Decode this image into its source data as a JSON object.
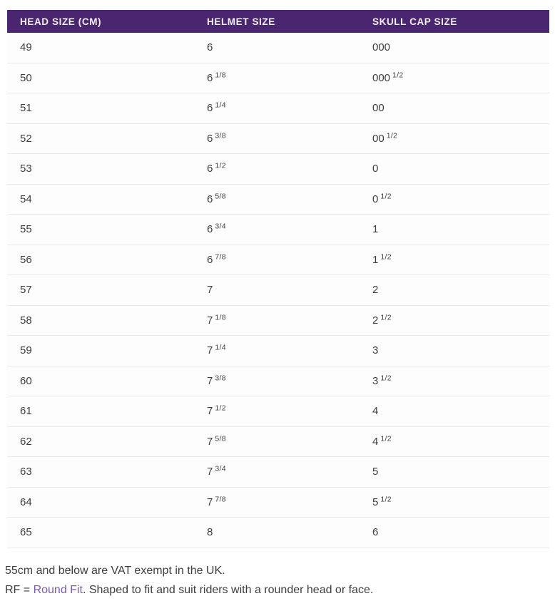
{
  "table": {
    "columns": [
      "HEAD SIZE (CM)",
      "HELMET SIZE",
      "SKULL CAP SIZE"
    ],
    "rows": [
      {
        "head": "49",
        "helmet_whole": "6",
        "helmet_frac": "",
        "skull_whole": "000",
        "skull_frac": ""
      },
      {
        "head": "50",
        "helmet_whole": "6",
        "helmet_frac": "1/8",
        "skull_whole": "000",
        "skull_frac": "1/2"
      },
      {
        "head": "51",
        "helmet_whole": "6",
        "helmet_frac": "1/4",
        "skull_whole": "00",
        "skull_frac": ""
      },
      {
        "head": "52",
        "helmet_whole": "6",
        "helmet_frac": "3/8",
        "skull_whole": "00",
        "skull_frac": "1/2"
      },
      {
        "head": "53",
        "helmet_whole": "6",
        "helmet_frac": "1/2",
        "skull_whole": "0",
        "skull_frac": ""
      },
      {
        "head": "54",
        "helmet_whole": "6",
        "helmet_frac": "5/8",
        "skull_whole": "0",
        "skull_frac": "1/2"
      },
      {
        "head": "55",
        "helmet_whole": "6",
        "helmet_frac": "3/4",
        "skull_whole": "1",
        "skull_frac": ""
      },
      {
        "head": "56",
        "helmet_whole": "6",
        "helmet_frac": "7/8",
        "skull_whole": "1",
        "skull_frac": "1/2"
      },
      {
        "head": "57",
        "helmet_whole": "7",
        "helmet_frac": "",
        "skull_whole": "2",
        "skull_frac": ""
      },
      {
        "head": "58",
        "helmet_whole": "7",
        "helmet_frac": "1/8",
        "skull_whole": "2",
        "skull_frac": "1/2"
      },
      {
        "head": "59",
        "helmet_whole": "7",
        "helmet_frac": "1/4",
        "skull_whole": "3",
        "skull_frac": ""
      },
      {
        "head": "60",
        "helmet_whole": "7",
        "helmet_frac": "3/8",
        "skull_whole": "3",
        "skull_frac": "1/2"
      },
      {
        "head": "61",
        "helmet_whole": "7",
        "helmet_frac": "1/2",
        "skull_whole": "4",
        "skull_frac": ""
      },
      {
        "head": "62",
        "helmet_whole": "7",
        "helmet_frac": "5/8",
        "skull_whole": "4",
        "skull_frac": "1/2"
      },
      {
        "head": "63",
        "helmet_whole": "7",
        "helmet_frac": "3/4",
        "skull_whole": "5",
        "skull_frac": ""
      },
      {
        "head": "64",
        "helmet_whole": "7",
        "helmet_frac": "7/8",
        "skull_whole": "5",
        "skull_frac": "1/2"
      },
      {
        "head": "65",
        "helmet_whole": "8",
        "helmet_frac": "",
        "skull_whole": "6",
        "skull_frac": ""
      }
    ]
  },
  "notes": {
    "line1": "55cm and below are VAT exempt in the UK.",
    "line2_prefix": "RF = ",
    "line2_link": "Round Fit",
    "line2_suffix": ". Shaped to fit and suit riders with a rounder head or face."
  },
  "colors": {
    "header_bg": "#4A2570",
    "link": "#7B5BA7",
    "text": "#3D3D3D",
    "border": "#E8E8E8",
    "row_bg": "#FDFDFD"
  }
}
